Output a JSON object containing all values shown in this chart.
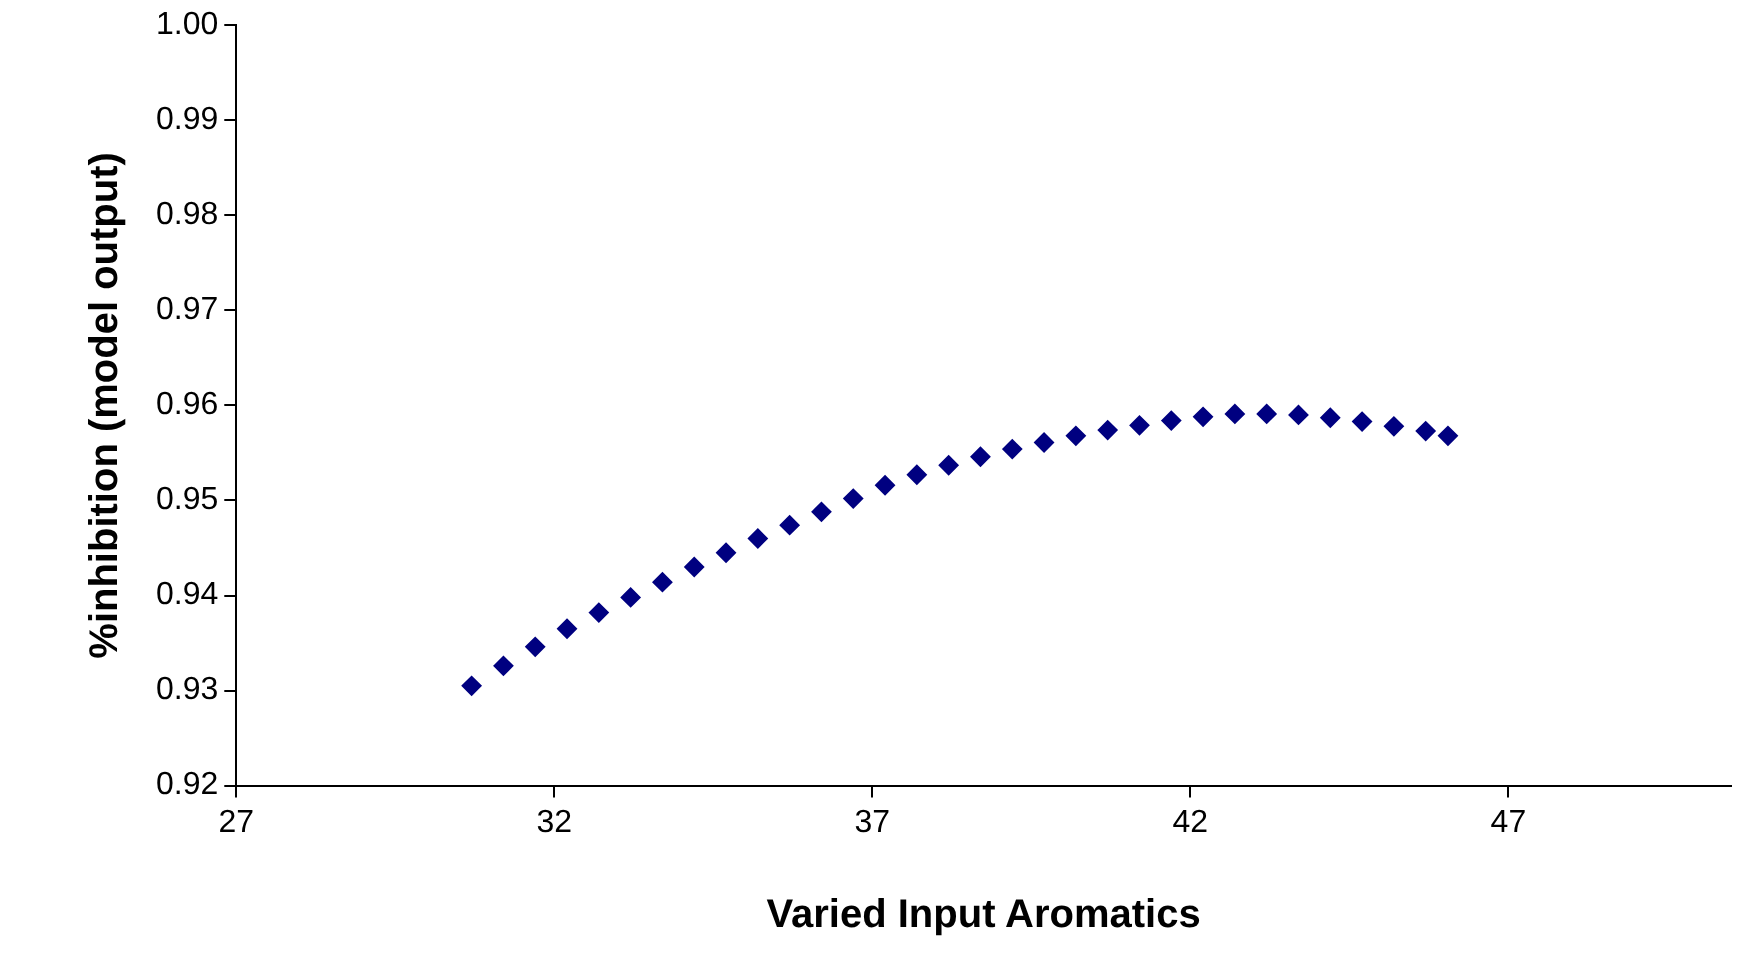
{
  "chart_data": {
    "type": "scatter",
    "xlabel": "Varied Input Aromatics",
    "ylabel": "%inhibition (model output)",
    "xlim": [
      27,
      50.5
    ],
    "xticks": [
      27,
      32,
      37,
      42,
      47
    ],
    "ylim": [
      0.92,
      1.0
    ],
    "yticks": [
      0.92,
      0.93,
      0.94,
      0.95,
      0.96,
      0.97,
      0.98,
      0.99,
      {
        "value": 1.0,
        "label": "1.00"
      }
    ],
    "marker": "diamond",
    "grid": false,
    "legend": false,
    "series": [
      {
        "color": "#000080",
        "x": [
          30.7,
          31.2,
          31.7,
          32.2,
          32.7,
          33.2,
          33.7,
          34.2,
          34.7,
          35.2,
          35.7,
          36.2,
          36.7,
          37.2,
          37.7,
          38.2,
          38.7,
          39.2,
          39.7,
          40.2,
          40.7,
          41.2,
          41.7,
          42.2,
          42.7,
          43.2,
          43.7,
          44.2,
          44.7,
          45.2,
          45.7,
          46.05
        ],
        "values": [
          0.9305,
          0.9326,
          0.9346,
          0.9365,
          0.9382,
          0.9398,
          0.9414,
          0.943,
          0.9445,
          0.946,
          0.9474,
          0.9488,
          0.9502,
          0.9516,
          0.9527,
          0.9537,
          0.9546,
          0.9554,
          0.9561,
          0.9568,
          0.9574,
          0.9579,
          0.9584,
          0.9588,
          0.9591,
          0.9591,
          0.959,
          0.9587,
          0.9583,
          0.9578,
          0.9573,
          0.9568
        ]
      }
    ]
  }
}
